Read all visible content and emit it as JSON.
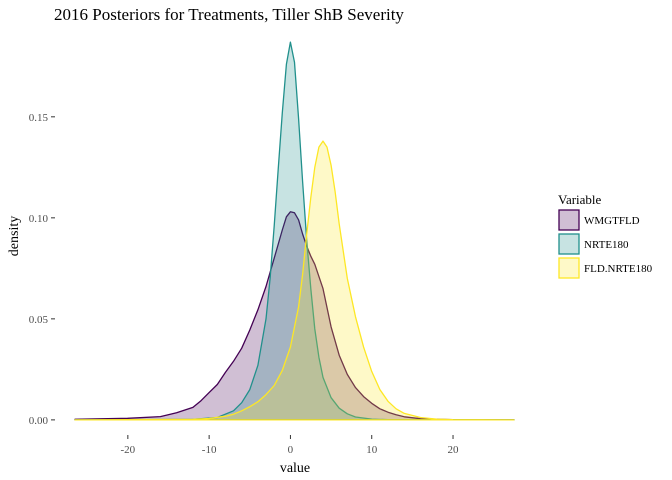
{
  "chart_data": {
    "type": "area",
    "title": "2016 Posteriors for Treatments, Tiller ShB Severity",
    "xlabel": "value",
    "ylabel": "density",
    "xlim": [
      -26.5,
      27.5
    ],
    "ylim": [
      -0.006,
      0.19
    ],
    "x_ticks": [
      -20,
      -10,
      0,
      10,
      20
    ],
    "x_tick_labels": [
      "-20",
      "-10",
      "0",
      "10",
      "20"
    ],
    "y_ticks": [
      0,
      0.05,
      0.1,
      0.15
    ],
    "y_tick_labels": [
      "0.00",
      "0.05",
      "0.10",
      "0.15"
    ],
    "grid": false,
    "legend": {
      "title": "Variable",
      "position": "right"
    },
    "series": [
      {
        "name": "WMGTFLD",
        "color": "#440154",
        "fill": "#440154",
        "x": [
          -26.5,
          -20,
          -16,
          -14,
          -12,
          -11,
          -10,
          -9,
          -8,
          -7,
          -6,
          -5,
          -4,
          -3,
          -2,
          -1,
          -0.5,
          0,
          0.5,
          1,
          1.5,
          2,
          2.5,
          3,
          4,
          5,
          6,
          7,
          8,
          9,
          10,
          11,
          12,
          13,
          14,
          16,
          18,
          20,
          27.5
        ],
        "y": [
          0.0003,
          0.0008,
          0.0016,
          0.0035,
          0.0062,
          0.0095,
          0.0135,
          0.0175,
          0.0235,
          0.029,
          0.0355,
          0.0445,
          0.0545,
          0.066,
          0.08,
          0.094,
          0.1005,
          0.103,
          0.1025,
          0.099,
          0.092,
          0.086,
          0.081,
          0.077,
          0.065,
          0.046,
          0.032,
          0.0225,
          0.016,
          0.0115,
          0.0082,
          0.0055,
          0.0038,
          0.0025,
          0.0015,
          0.0006,
          0.0003,
          0.0001,
          0.0
        ]
      },
      {
        "name": "NRTE180",
        "color": "#21908C",
        "fill": "#21908C",
        "x": [
          -26.5,
          -12,
          -9,
          -7,
          -6,
          -5,
          -4,
          -3,
          -2.5,
          -2,
          -1.5,
          -1,
          -0.5,
          0,
          0.5,
          1,
          1.5,
          2,
          2.5,
          3,
          3.5,
          4,
          5,
          6,
          7,
          8,
          10,
          12,
          27.5
        ],
        "y": [
          0.0,
          0.0003,
          0.0012,
          0.0045,
          0.0085,
          0.015,
          0.027,
          0.05,
          0.07,
          0.096,
          0.124,
          0.152,
          0.176,
          0.187,
          0.177,
          0.149,
          0.118,
          0.089,
          0.065,
          0.045,
          0.031,
          0.021,
          0.011,
          0.0058,
          0.003,
          0.0014,
          0.0004,
          0.0001,
          0.0
        ]
      },
      {
        "name": "FLD.NRTE180",
        "color": "#FDE725",
        "fill": "#FDE725",
        "x": [
          -26.5,
          -12,
          -10,
          -8,
          -7,
          -6,
          -5,
          -4,
          -3,
          -2,
          -1,
          0,
          1,
          1.5,
          2,
          2.5,
          3,
          3.5,
          4,
          4.5,
          5,
          5.5,
          6,
          7,
          8,
          9,
          10,
          11,
          12,
          13,
          14,
          16,
          18,
          20,
          27.5
        ],
        "y": [
          0.0,
          0.0003,
          0.0007,
          0.0018,
          0.0028,
          0.0045,
          0.0065,
          0.009,
          0.0125,
          0.017,
          0.0245,
          0.036,
          0.056,
          0.072,
          0.092,
          0.11,
          0.125,
          0.135,
          0.138,
          0.135,
          0.126,
          0.113,
          0.097,
          0.07,
          0.051,
          0.036,
          0.024,
          0.015,
          0.0092,
          0.0055,
          0.0032,
          0.0012,
          0.0004,
          0.0001,
          0.0
        ]
      }
    ]
  }
}
